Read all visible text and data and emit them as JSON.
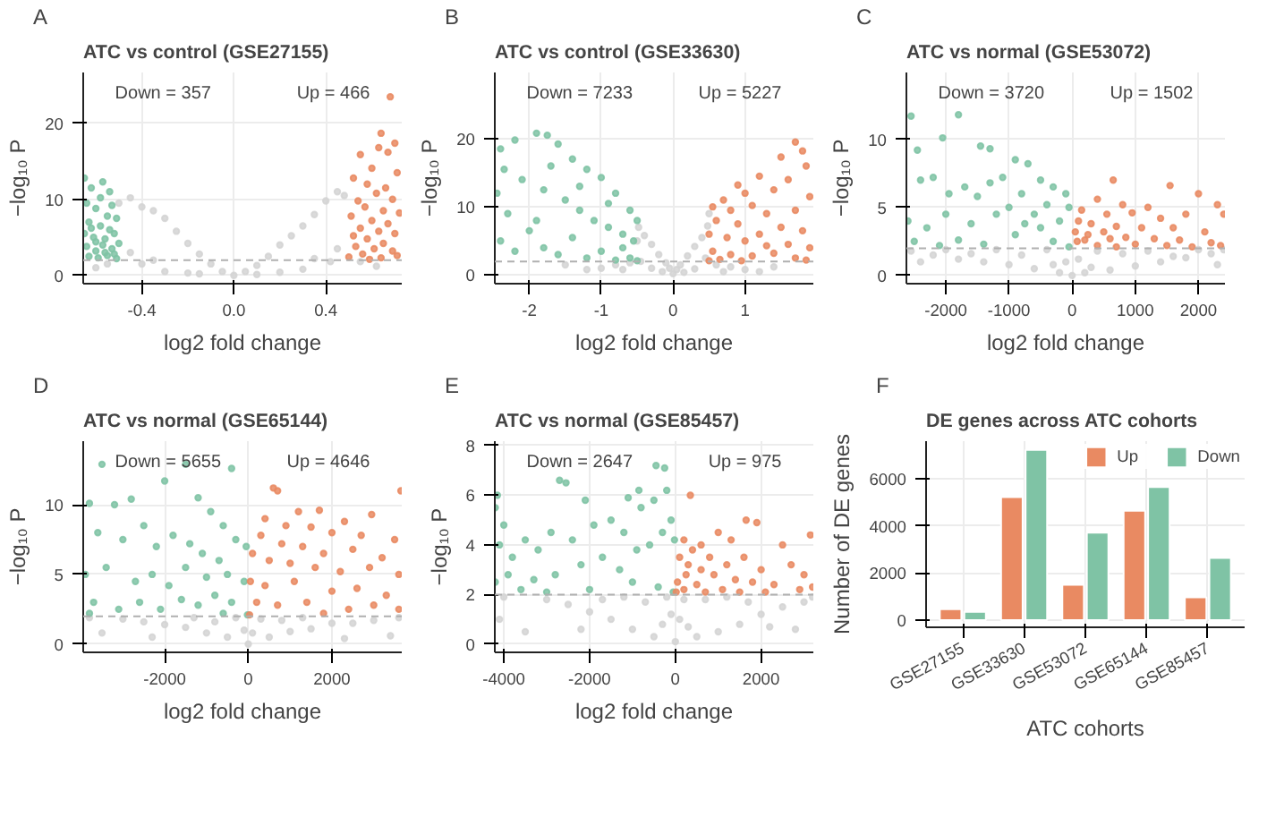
{
  "chart_data": [
    {
      "type": "scatter",
      "title": "ATC vs control (GSE27155)",
      "xlabel": "log2 fold change",
      "ylabel": "−log₁₀ P",
      "annotations": [
        "A",
        "Down = 357",
        "Up = 466"
      ],
      "xlim": [
        -0.655,
        0.73
      ],
      "ylim": [
        -1.1,
        26.7
      ],
      "xticks": [
        -0.4,
        {
          "value": 0,
          "label": "0.0"
        },
        0.4
      ],
      "yticks": [
        0,
        10,
        20
      ],
      "grid": true,
      "legend": false,
      "marker": "circle",
      "ref_lines": [
        {
          "axis": "y",
          "value": 2,
          "color": "#b0b0b0",
          "line_style": "dashed"
        }
      ],
      "series": [
        {
          "color": "#d3d3d3",
          "x": [
            0,
            -0.05,
            0.05,
            -0.1,
            0.1,
            -0.15,
            0.15,
            -0.2,
            0.2,
            -0.25,
            0.25,
            -0.3,
            0.3,
            -0.35,
            0.35,
            -0.4,
            0.4,
            -0.45,
            0.45,
            -0.5,
            0.48,
            -0.55,
            0.55,
            -0.6,
            0.62,
            -0.3,
            0.3,
            -0.4,
            0.42,
            -0.2,
            0.2,
            -0.15,
            0.1,
            -0.45,
            0.45,
            -0.35,
            0.35
          ],
          "values": [
            0,
            0.5,
            0.5,
            1.5,
            1.3,
            2.8,
            2.5,
            4.2,
            4.0,
            5.8,
            5.2,
            7.5,
            6.5,
            8.5,
            8.0,
            9.0,
            9.8,
            10.2,
            11.0,
            9.5,
            10.5,
            1.5,
            1.8,
            1.0,
            1.2,
            0.5,
            0.8,
            1.5,
            1.8,
            0.3,
            0.4,
            0.2,
            0.1,
            3.0,
            3.5,
            2.0,
            2.2
          ]
        },
        {
          "color": "#7fc3a5",
          "x": [
            -0.65,
            -0.62,
            -0.57,
            -0.54,
            -0.64,
            -0.6,
            -0.53,
            -0.51,
            -0.63,
            -0.58,
            -0.55,
            -0.65,
            -0.61,
            -0.56,
            -0.52,
            -0.64,
            -0.6,
            -0.57,
            -0.53,
            -0.5,
            -0.63,
            -0.59,
            -0.55,
            -0.51,
            -0.62,
            -0.54,
            -0.58,
            -0.52,
            -0.6,
            -0.56
          ],
          "values": [
            12.8,
            11.5,
            12.3,
            11.0,
            9.5,
            8.8,
            9.2,
            7.5,
            7.0,
            6.5,
            7.8,
            5.5,
            5.0,
            4.8,
            5.5,
            3.8,
            3.2,
            4.0,
            3.5,
            4.2,
            2.5,
            2.3,
            2.6,
            2.2,
            6.2,
            6.0,
            10.2,
            2.8,
            4.4,
            3.0
          ]
        },
        {
          "color": "#e98a62",
          "x": [
            0.68,
            0.64,
            0.63,
            0.7,
            0.67,
            0.55,
            0.6,
            0.71,
            0.52,
            0.58,
            0.66,
            0.62,
            0.69,
            0.54,
            0.57,
            0.65,
            0.72,
            0.51,
            0.6,
            0.67,
            0.55,
            0.63,
            0.7,
            0.52,
            0.58,
            0.65,
            0.53,
            0.61,
            0.69,
            0.56,
            0.5,
            0.64,
            0.71,
            0.59
          ],
          "values": [
            23.5,
            18.7,
            16.8,
            17.4,
            16.2,
            15.9,
            14.1,
            13.5,
            12.8,
            12.0,
            11.5,
            10.8,
            10.0,
            9.8,
            9.0,
            8.5,
            8.2,
            7.8,
            7.2,
            6.8,
            6.2,
            5.8,
            5.5,
            5.2,
            4.8,
            4.2,
            3.8,
            3.5,
            3.2,
            2.8,
            2.4,
            2.3,
            2.6,
            2.1
          ]
        }
      ]
    },
    {
      "type": "scatter",
      "title": "ATC vs control (GSE33630)",
      "xlabel": "log2 fold change",
      "ylabel": "−log₁₀ P",
      "annotations": [
        "B",
        "Down = 7233",
        "Up = 5227"
      ],
      "xlim": [
        -2.48,
        1.95
      ],
      "ylim": [
        -1.26,
        29.7
      ],
      "xticks": [
        -2,
        -1,
        0,
        1
      ],
      "yticks": [
        0,
        10,
        20
      ],
      "grid": true,
      "legend": false,
      "marker": "circle",
      "ref_lines": [
        {
          "axis": "y",
          "value": 2,
          "color": "#b0b0b0",
          "line_style": "dashed"
        }
      ],
      "series": [
        {
          "color": "#d3d3d3",
          "x": [
            0,
            -0.05,
            0.05,
            -0.1,
            0.1,
            -0.2,
            0.2,
            -0.3,
            0.3,
            -0.4,
            0.4,
            -0.48,
            0.48,
            -0.5,
            0.5,
            -0.45,
            0.45,
            -0.6,
            0.6,
            -0.8,
            0.8,
            -1.0,
            1.0,
            -1.2,
            1.2,
            -1.5,
            1.4,
            -0.7,
            0.7,
            -0.3,
            0.3,
            -0.15,
            0.15
          ],
          "values": [
            0.2,
            1.0,
            0.8,
            1.8,
            1.5,
            3.0,
            2.8,
            4.5,
            4.2,
            5.8,
            5.5,
            7.0,
            7.2,
            5.0,
            9.0,
            2.0,
            2.5,
            1.8,
            1.5,
            1.5,
            1.2,
            1.0,
            0.8,
            0.8,
            0.5,
            1.5,
            1.2,
            0.8,
            0.5,
            1.0,
            0.9,
            0.5,
            0.4
          ]
        },
        {
          "color": "#7fc3a5",
          "x": [
            -2.4,
            -2.2,
            -1.9,
            -1.75,
            -1.6,
            -1.4,
            -1.2,
            -1.0,
            -0.8,
            -0.6,
            -0.5,
            -2.45,
            -2.3,
            -2.1,
            -1.8,
            -1.5,
            -1.3,
            -1.1,
            -0.9,
            -0.7,
            -0.55,
            -2.4,
            -2.2,
            -2.0,
            -1.8,
            -1.6,
            -1.4,
            -1.2,
            -1.0,
            -0.8,
            -0.6,
            -0.5,
            -1.9,
            -1.7,
            -1.3,
            -0.9,
            -0.7,
            -2.35
          ],
          "values": [
            18.5,
            19.8,
            20.8,
            20.5,
            19.2,
            17.0,
            15.5,
            14.3,
            12.0,
            9.5,
            8.0,
            12.0,
            9.0,
            14.0,
            12.5,
            11.0,
            9.5,
            8.0,
            7.0,
            6.0,
            5.0,
            5.0,
            3.5,
            6.5,
            4.0,
            3.0,
            5.5,
            2.5,
            3.5,
            2.2,
            2.5,
            2.1,
            8.0,
            16.0,
            13.0,
            10.5,
            4.0,
            15.5
          ]
        },
        {
          "color": "#e98a62",
          "x": [
            1.7,
            1.8,
            1.5,
            1.85,
            1.2,
            1.6,
            0.9,
            1.0,
            1.4,
            1.9,
            0.7,
            0.55,
            0.8,
            1.1,
            1.3,
            1.7,
            0.6,
            0.9,
            1.5,
            1.8,
            0.5,
            0.75,
            1.0,
            1.2,
            1.6,
            1.9,
            0.55,
            0.8,
            1.1,
            1.4,
            1.7,
            0.5,
            0.65,
            0.95,
            1.85,
            1.3
          ],
          "values": [
            19.5,
            18.2,
            17.3,
            16.0,
            14.5,
            14.0,
            13.2,
            12.0,
            12.5,
            11.5,
            11.0,
            10.0,
            9.5,
            10.2,
            9.0,
            9.5,
            8.0,
            7.5,
            7.0,
            6.5,
            6.0,
            5.5,
            5.0,
            6.0,
            4.5,
            4.0,
            3.5,
            3.0,
            2.8,
            3.2,
            2.5,
            2.1,
            2.3,
            2.1,
            2.2,
            4.3
          ]
        }
      ]
    },
    {
      "type": "scatter",
      "title": "ATC vs normal (GSE53072)",
      "xlabel": "log2 fold change",
      "ylabel": "−log₁₀ P",
      "annotations": [
        "C",
        "Down = 3720",
        "Up = 1502"
      ],
      "xlim": [
        -2624,
        2419
      ],
      "ylim": [
        -0.6,
        14.9
      ],
      "xticks": [
        -2000,
        -1000,
        0,
        1000,
        2000
      ],
      "yticks": [
        0,
        5,
        10
      ],
      "grid": true,
      "legend": false,
      "marker": "circle",
      "ref_lines": [
        {
          "axis": "y",
          "value": 2,
          "color": "#b0b0b0",
          "line_style": "dashed"
        }
      ],
      "series": [
        {
          "color": "#d3d3d3",
          "x": [
            0,
            -200,
            200,
            -600,
            600,
            -1000,
            1000,
            -1400,
            1400,
            -1800,
            1800,
            -2200,
            2200,
            -2550,
            2400,
            -400,
            400,
            -800,
            800,
            -1200,
            1200,
            -1600,
            1600,
            -2000,
            2000,
            -2400,
            2300,
            -100,
            100,
            -300,
            300
          ],
          "values": [
            0,
            0.2,
            0.2,
            0.5,
            0.4,
            0.8,
            0.7,
            1.0,
            1.0,
            1.2,
            1.3,
            1.5,
            1.6,
            1.8,
            1.9,
            1.9,
            1.8,
            1.5,
            1.6,
            1.9,
            1.8,
            1.6,
            1.4,
            1.9,
            1.9,
            1.0,
            0.8,
            1.0,
            1.2,
            0.8,
            0.6
          ]
        },
        {
          "color": "#7fc3a5",
          "x": [
            -2550,
            -1800,
            -2050,
            -2450,
            -1450,
            -1300,
            -900,
            -700,
            -500,
            -300,
            -100,
            -2400,
            -2200,
            -1950,
            -1700,
            -1500,
            -1100,
            -800,
            -400,
            -50,
            -2600,
            -2300,
            -2000,
            -1600,
            -1200,
            -1000,
            -600,
            -200,
            -2500,
            -2100,
            -1800,
            -1400,
            -900,
            -500,
            -300,
            -50,
            -1300,
            -750
          ],
          "values": [
            11.7,
            11.8,
            10.1,
            9.2,
            9.5,
            9.3,
            8.5,
            8.2,
            7.0,
            6.5,
            6.0,
            7.0,
            7.2,
            6.0,
            6.5,
            5.8,
            7.2,
            6.0,
            5.2,
            5.0,
            4.0,
            3.5,
            4.5,
            3.8,
            4.5,
            5.0,
            4.5,
            4.0,
            2.5,
            2.2,
            2.6,
            2.3,
            3.0,
            3.5,
            2.5,
            2.1,
            6.8,
            3.8
          ]
        },
        {
          "color": "#e98a62",
          "x": [
            650,
            1550,
            2000,
            400,
            800,
            1200,
            2300,
            150,
            550,
            950,
            1400,
            1800,
            2400,
            100,
            300,
            700,
            1100,
            1600,
            2100,
            50,
            250,
            500,
            850,
            1300,
            1700,
            2200,
            80,
            400,
            700,
            1000,
            1500,
            1900,
            2350,
            200,
            600
          ],
          "values": [
            7.0,
            6.6,
            6.0,
            5.6,
            5.2,
            5.0,
            5.2,
            4.8,
            4.5,
            4.6,
            4.2,
            4.5,
            4.5,
            4.0,
            3.8,
            3.6,
            3.5,
            3.5,
            3.2,
            3.2,
            3.0,
            3.2,
            2.8,
            2.7,
            2.6,
            2.4,
            2.5,
            2.2,
            2.1,
            2.3,
            2.2,
            2.1,
            2.2,
            2.6,
            2.7
          ]
        }
      ]
    },
    {
      "type": "scatter",
      "title": "ATC vs normal (GSE65144)",
      "xlabel": "log2 fold change",
      "ylabel": "−log₁₀ P",
      "annotations": [
        "D",
        "Down = 5655",
        "Up = 4646"
      ],
      "xlim": [
        -3949,
        3670
      ],
      "ylim": [
        -0.59,
        14.56
      ],
      "xticks": [
        -2000,
        0,
        2000
      ],
      "yticks": [
        0,
        5,
        10
      ],
      "grid": true,
      "legend": false,
      "marker": "circle",
      "ref_lines": [
        {
          "axis": "y",
          "value": 2,
          "color": "#b0b0b0",
          "line_style": "dashed"
        }
      ],
      "series": [
        {
          "color": "#d3d3d3",
          "x": [
            0,
            -500,
            500,
            -1000,
            1000,
            -1500,
            1500,
            -2000,
            2000,
            -2500,
            2500,
            -3000,
            3000,
            -3800,
            3600,
            -300,
            300,
            -800,
            800,
            -1300,
            1300,
            -2300,
            2300,
            -3500,
            3400,
            -100,
            100
          ],
          "values": [
            0,
            0.5,
            0.5,
            0.8,
            0.9,
            1.2,
            1.1,
            1.4,
            1.5,
            1.6,
            1.5,
            1.8,
            1.7,
            1.9,
            1.9,
            1.9,
            1.8,
            1.6,
            1.7,
            1.9,
            1.9,
            0.5,
            0.4,
            0.8,
            0.6,
            1.0,
            0.8
          ]
        },
        {
          "color": "#7fc3a5",
          "x": [
            -3500,
            -3200,
            -1500,
            -400,
            -2000,
            -3800,
            -2800,
            -1200,
            -900,
            -600,
            -300,
            -50,
            -3600,
            -3000,
            -2500,
            -2200,
            -1800,
            -1400,
            -1100,
            -700,
            -3900,
            -3400,
            -2700,
            -2300,
            -1900,
            -1500,
            -1000,
            -500,
            -100,
            -3700,
            -3100,
            -2600,
            -2100,
            -1600,
            -1200,
            -800,
            -400,
            -20,
            -3800,
            -600
          ],
          "values": [
            12.9,
            10.0,
            12.9,
            12.6,
            11.7,
            10.1,
            10.4,
            10.5,
            9.5,
            8.5,
            7.5,
            7.0,
            8.0,
            7.5,
            8.5,
            7.0,
            7.8,
            7.2,
            6.5,
            6.0,
            5.0,
            5.5,
            4.5,
            5.0,
            4.2,
            5.5,
            4.8,
            5.0,
            4.5,
            3.0,
            2.5,
            3.0,
            2.5,
            3.2,
            2.8,
            3.5,
            3.0,
            2.1,
            2.2,
            2.2
          ]
        },
        {
          "color": "#e98a62",
          "x": [
            3650,
            600,
            700,
            2950,
            1200,
            1700,
            2300,
            400,
            900,
            1500,
            2000,
            2700,
            3500,
            300,
            800,
            1300,
            1800,
            2500,
            3200,
            100,
            500,
            1000,
            1600,
            2200,
            2900,
            3600,
            50,
            400,
            1100,
            2000,
            2600,
            3300,
            200,
            700,
            1400,
            2400,
            3000,
            3600,
            30,
            1800
          ],
          "values": [
            11.0,
            11.2,
            11.0,
            9.3,
            9.5,
            9.6,
            8.8,
            9.0,
            8.5,
            8.4,
            8.0,
            7.8,
            7.5,
            7.8,
            7.2,
            7.0,
            6.5,
            6.8,
            6.2,
            6.5,
            6.0,
            5.8,
            5.5,
            5.2,
            5.5,
            5.0,
            4.5,
            4.2,
            4.5,
            3.8,
            4.0,
            3.5,
            3.0,
            2.8,
            3.0,
            2.5,
            2.8,
            2.5,
            2.1,
            2.2
          ]
        }
      ]
    },
    {
      "type": "scatter",
      "title": "ATC vs normal (GSE85457)",
      "xlabel": "log2 fold change",
      "ylabel": "−log₁₀ P",
      "annotations": [
        "E",
        "Down = 2647",
        "Up = 975"
      ],
      "xlim": [
        -4210,
        3218
      ],
      "ylim": [
        -0.33,
        8.18
      ],
      "xticks": [
        -4000,
        -2000,
        0,
        2000
      ],
      "yticks": [
        0,
        2,
        4,
        6,
        8
      ],
      "grid": true,
      "legend": false,
      "marker": "circle",
      "ref_lines": [
        {
          "axis": "y",
          "value": 2,
          "color": "#b0b0b0",
          "line_style": "dashed"
        }
      ],
      "series": [
        {
          "color": "#d3d3d3",
          "x": [
            0,
            -500,
            500,
            -1000,
            1000,
            -1500,
            1500,
            -2000,
            2000,
            -2500,
            2500,
            -3000,
            3000,
            -4000,
            3200,
            -3500,
            -4100,
            2800,
            -200,
            200,
            -700,
            700,
            -1200,
            1200,
            -1700,
            1700,
            -2200,
            2200,
            -100,
            100,
            -300,
            300
          ],
          "values": [
            0.1,
            0.3,
            0.3,
            0.6,
            0.5,
            1.0,
            0.8,
            1.3,
            1.2,
            1.6,
            1.5,
            1.8,
            1.7,
            1.9,
            1.9,
            0.5,
            1.0,
            0.6,
            1.9,
            1.8,
            1.7,
            1.8,
            1.9,
            1.9,
            1.8,
            1.7,
            0.6,
            0.7,
            1.2,
            1.0,
            0.8,
            0.7
          ]
        },
        {
          "color": "#7fc3a5",
          "x": [
            -4150,
            -4200,
            -4000,
            -2700,
            -2550,
            -2100,
            -1100,
            -850,
            -450,
            -250,
            -200,
            -4100,
            -3800,
            -3500,
            -3200,
            -2900,
            -2400,
            -1900,
            -1500,
            -1200,
            -800,
            -500,
            -100,
            -4200,
            -3900,
            -3600,
            -3300,
            -2800,
            -2200,
            -1700,
            -1300,
            -900,
            -600,
            -300,
            -20,
            -3000,
            -2000,
            -1000,
            -400,
            -50
          ],
          "values": [
            6.0,
            5.5,
            4.8,
            6.6,
            6.5,
            5.8,
            5.9,
            6.2,
            7.2,
            7.1,
            6.2,
            4.0,
            3.5,
            4.2,
            3.8,
            4.5,
            4.2,
            4.8,
            5.0,
            4.5,
            5.5,
            5.8,
            5.0,
            2.5,
            2.8,
            2.2,
            2.6,
            2.8,
            3.2,
            3.5,
            3.0,
            3.8,
            4.0,
            4.5,
            4.2,
            2.1,
            2.2,
            2.5,
            2.3,
            2.1
          ]
        },
        {
          "color": "#e98a62",
          "x": [
            350,
            1650,
            1900,
            3150,
            1000,
            1300,
            2500,
            600,
            200,
            400,
            800,
            1200,
            1600,
            2000,
            2700,
            3000,
            100,
            300,
            600,
            900,
            1400,
            1800,
            2300,
            3200,
            50,
            200,
            500,
            700,
            1100,
            1500,
            2100,
            2900,
            20,
            250
          ],
          "values": [
            6.0,
            5.0,
            4.9,
            4.4,
            4.5,
            4.2,
            4.0,
            4.0,
            4.2,
            3.8,
            3.5,
            3.2,
            3.5,
            3.0,
            3.2,
            2.8,
            3.5,
            3.2,
            3.0,
            2.8,
            2.6,
            2.5,
            2.4,
            2.3,
            2.5,
            2.2,
            2.4,
            2.1,
            2.2,
            2.1,
            2.1,
            2.2,
            2.1,
            2.8
          ]
        }
      ]
    },
    {
      "type": "bar",
      "title": "DE genes across ATC cohorts",
      "xlabel": "ATC cohorts",
      "ylabel": "Number of DE genes",
      "annotations": [
        "F"
      ],
      "categories": [
        "GSE27155",
        "GSE33630",
        "GSE53072",
        "GSE65144",
        "GSE85457"
      ],
      "ylim": [
        -300,
        7600
      ],
      "yticks": [
        0,
        2000,
        4000,
        6000
      ],
      "grid": true,
      "legend": "top right",
      "series": [
        {
          "name": "Up",
          "color": "#e98a62",
          "values": [
            466,
            5227,
            1502,
            4646,
            975
          ]
        },
        {
          "name": "Down",
          "color": "#7fc3a5",
          "values": [
            357,
            7233,
            3720,
            5655,
            2647
          ]
        }
      ]
    }
  ]
}
